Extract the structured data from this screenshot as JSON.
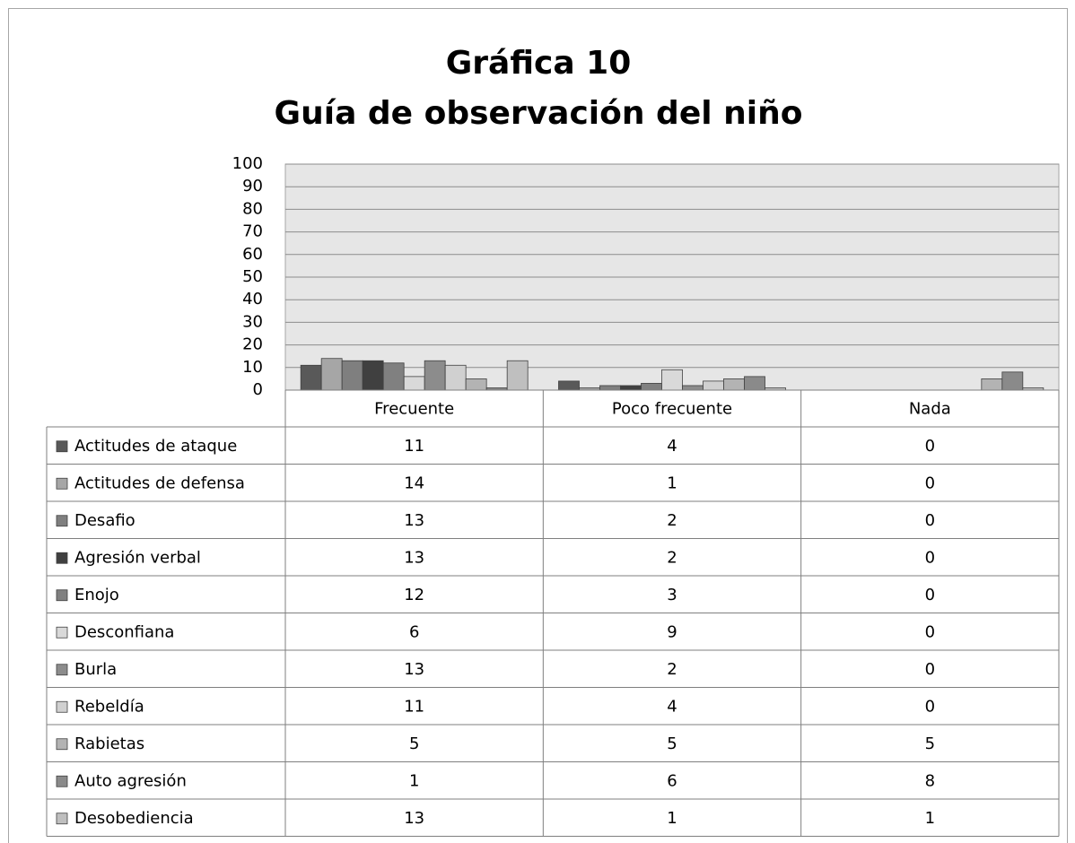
{
  "chart_data": {
    "type": "bar",
    "title": "Gráfica 10",
    "subtitle": "Guía de observación del niño",
    "categories": [
      "Frecuente",
      "Poco frecuente",
      "Nada"
    ],
    "ylim": [
      0,
      100
    ],
    "yticks": [
      0,
      10,
      20,
      30,
      40,
      50,
      60,
      70,
      80,
      90,
      100
    ],
    "grid": true,
    "series": [
      {
        "name": "Actitudes de ataque",
        "color": "#595959",
        "values": [
          11,
          4,
          0
        ]
      },
      {
        "name": "Actitudes de defensa",
        "color": "#a6a6a6",
        "values": [
          14,
          1,
          0
        ]
      },
      {
        "name": "Desafio",
        "color": "#7f7f7f",
        "values": [
          13,
          2,
          0
        ]
      },
      {
        "name": "Agresión verbal",
        "color": "#404040",
        "values": [
          13,
          2,
          0
        ]
      },
      {
        "name": "Enojo",
        "color": "#808080",
        "values": [
          12,
          3,
          0
        ]
      },
      {
        "name": "Desconfiana",
        "color": "#d9d9d9",
        "values": [
          6,
          9,
          0
        ]
      },
      {
        "name": "Burla",
        "color": "#8c8c8c",
        "values": [
          13,
          2,
          0
        ]
      },
      {
        "name": "Rebeldía",
        "color": "#d0d0d0",
        "values": [
          11,
          4,
          0
        ]
      },
      {
        "name": "Rabietas",
        "color": "#b3b3b3",
        "values": [
          5,
          5,
          5
        ]
      },
      {
        "name": "Auto agresión",
        "color": "#8a8a8a",
        "values": [
          1,
          6,
          8
        ]
      },
      {
        "name": "Desobediencia",
        "color": "#bfbfbf",
        "values": [
          13,
          1,
          1
        ]
      }
    ]
  }
}
